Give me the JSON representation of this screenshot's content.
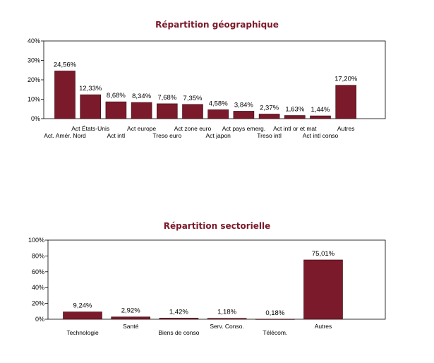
{
  "chart_data": [
    {
      "type": "bar",
      "title": "Répartition géographique",
      "xlabel": "",
      "ylabel": "",
      "ylim": [
        0,
        40
      ],
      "yticks": [
        "0%",
        "10%",
        "20%",
        "30%",
        "40%"
      ],
      "grid": false,
      "categories": [
        "Act. Amér. Nord",
        "Act États-Unis",
        "Act intl",
        "Act europe",
        "Treso euro",
        "Act zone euro",
        "Act japon",
        "Act pays emerg.",
        "Treso intl",
        "Act intl or et mat",
        "Act intl conso",
        "Autres"
      ],
      "values": [
        24.56,
        12.33,
        8.68,
        8.34,
        7.68,
        7.35,
        4.58,
        3.84,
        2.37,
        1.63,
        1.44,
        17.2
      ],
      "data_labels": [
        "24,56%",
        "12,33%",
        "8,68%",
        "8,34%",
        "7,68%",
        "7,35%",
        "4,58%",
        "3,84%",
        "2,37%",
        "1,63%",
        "1,44%",
        "17,20%"
      ],
      "bar_color": "#7a1a2a"
    },
    {
      "type": "bar",
      "title": "Répartition sectorielle",
      "xlabel": "",
      "ylabel": "",
      "ylim": [
        0,
        100
      ],
      "yticks": [
        "0%",
        "20%",
        "40%",
        "60%",
        "80%",
        "100%"
      ],
      "grid": false,
      "categories": [
        "Technologie",
        "Santé",
        "Biens de conso",
        "Serv. Conso.",
        "Télécom.",
        "Autres"
      ],
      "values": [
        9.24,
        2.92,
        1.42,
        1.18,
        0.18,
        75.01
      ],
      "data_labels": [
        "9,24%",
        "2,92%",
        "1,42%",
        "1,18%",
        "0,18%",
        "75,01%"
      ],
      "bar_color": "#7a1a2a"
    }
  ]
}
